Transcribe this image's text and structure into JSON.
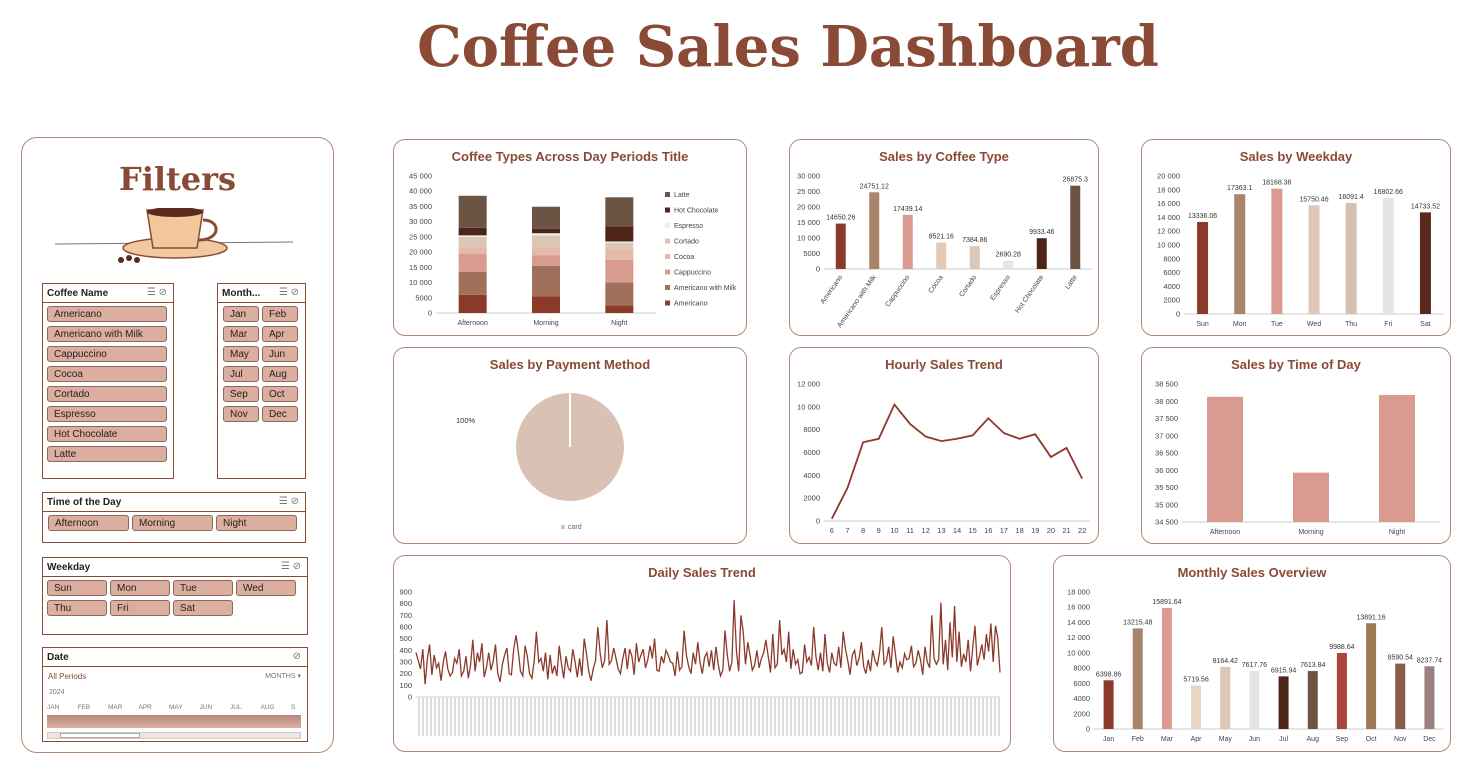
{
  "dashboard_title": "Coffee Sales Dashboard",
  "filters": {
    "title": "Filters",
    "coffee_slicer": {
      "title": "Coffee Name",
      "items": [
        "Americano",
        "Americano with Milk",
        "Cappuccino",
        "Cocoa",
        "Cortado",
        "Espresso",
        "Hot Chocolate",
        "Latte"
      ]
    },
    "month_slicer": {
      "title": "Month...",
      "items": [
        "Jan",
        "Feb",
        "Mar",
        "Apr",
        "May",
        "Jun",
        "Jul",
        "Aug",
        "Sep",
        "Oct",
        "Nov",
        "Dec"
      ]
    },
    "time_slicer": {
      "title": "Time of the Day",
      "items": [
        "Afternoon",
        "Morning",
        "Night"
      ]
    },
    "weekday_slicer": {
      "title": "Weekday",
      "items": [
        "Sun",
        "Mon",
        "Tue",
        "Wed",
        "Thu",
        "Fri",
        "Sat"
      ]
    },
    "date_slicer": {
      "title": "Date",
      "period": "All Periods",
      "granularity": "MONTHS",
      "year": "2024",
      "months": [
        "JAN",
        "FEB",
        "MAR",
        "APR",
        "MAY",
        "JUN",
        "JUL",
        "AUG",
        "S"
      ]
    }
  },
  "charts": {
    "coffee_types": {
      "title": "Coffee Types Across Day Periods Title"
    },
    "coffee_type_sales": {
      "title": "Sales by Coffee Type"
    },
    "weekday": {
      "title": "Sales by Weekday"
    },
    "payment": {
      "title": "Sales by Payment Method"
    },
    "hourly": {
      "title": "Hourly Sales Trend"
    },
    "time_of_day": {
      "title": "Sales by Time of Day"
    },
    "daily": {
      "title": "Daily Sales Trend"
    },
    "monthly": {
      "title": "Monthly Sales Overview"
    }
  },
  "chart_data": [
    {
      "id": "coffee_types",
      "type": "bar",
      "stacked": true,
      "categories": [
        "Afternoon",
        "Morning",
        "Night"
      ],
      "ylim": [
        0,
        45000
      ],
      "yticks": [
        0,
        5000,
        10000,
        15000,
        20000,
        25000,
        30000,
        35000,
        40000,
        45000
      ],
      "legend_position": "right",
      "series": [
        {
          "name": "Americano",
          "color": "#8b3a2a",
          "values": [
            6000,
            5500,
            2500
          ]
        },
        {
          "name": "Americano with Milk",
          "color": "#a0705a",
          "values": [
            7500,
            10000,
            7500
          ]
        },
        {
          "name": "Cappuccino",
          "color": "#d99a8f",
          "values": [
            6000,
            3500,
            7500
          ]
        },
        {
          "name": "Cocoa",
          "color": "#e5b9a9",
          "values": [
            2000,
            2500,
            3500
          ]
        },
        {
          "name": "Cortado",
          "color": "#dcc6b5",
          "values": [
            3500,
            4000,
            2000
          ]
        },
        {
          "name": "Espresso",
          "color": "#eeeeee",
          "values": [
            500,
            700,
            500
          ]
        },
        {
          "name": "Hot Chocolate",
          "color": "#4e2418",
          "values": [
            2500,
            1500,
            5000
          ]
        },
        {
          "name": "Latte",
          "color": "#6b5443",
          "values": [
            10500,
            7200,
            9500
          ]
        }
      ]
    },
    {
      "id": "coffee_type_sales",
      "type": "bar",
      "categories": [
        "Americano",
        "Americano with Milk",
        "Cappuccino",
        "Cocoa",
        "Cortado",
        "Espresso",
        "Hot Chocolate",
        "Latte"
      ],
      "values": [
        14650.26,
        24751.12,
        17439.14,
        8521.16,
        7384.86,
        2690.28,
        9933.46,
        26875.3
      ],
      "labels": [
        "14650.26",
        "24751.12",
        "17439.14",
        "8521.16",
        "7384.86",
        "2690.28",
        "9933.46",
        "26875.3"
      ],
      "colors": [
        "#8b3a2a",
        "#a9846a",
        "#d99a8f",
        "#e5c9b5",
        "#dcc6b5",
        "#e5e5e5",
        "#4e2418",
        "#6b5443"
      ],
      "ylim": [
        0,
        30000
      ],
      "yticks": [
        0,
        5000,
        10000,
        15000,
        20000,
        25000,
        30000
      ]
    },
    {
      "id": "weekday",
      "type": "bar",
      "categories": [
        "Sun",
        "Mon",
        "Tue",
        "Wed",
        "Thu",
        "Fri",
        "Sat"
      ],
      "values": [
        13336.06,
        17363.1,
        18168.38,
        15750.46,
        16091.4,
        16802.66,
        14733.52
      ],
      "labels": [
        "13336.06",
        "17363.1",
        "18168.38",
        "15750.46",
        "16091.4",
        "16802.66",
        "14733.52"
      ],
      "colors": [
        "#8b3a2a",
        "#a9846a",
        "#d99a8f",
        "#dfc6b5",
        "#d7c0b0",
        "#e5e5e5",
        "#5a2a1e"
      ],
      "ylim": [
        0,
        20000
      ],
      "yticks": [
        0,
        2000,
        4000,
        6000,
        8000,
        10000,
        12000,
        14000,
        16000,
        18000,
        20000
      ]
    },
    {
      "id": "payment",
      "type": "pie",
      "categories": [
        "card"
      ],
      "values": [
        100
      ],
      "labels": [
        "100%"
      ],
      "colors": [
        "#d9c1b3"
      ],
      "legend_position": "bottom"
    },
    {
      "id": "hourly",
      "type": "line",
      "x": [
        6,
        7,
        8,
        9,
        10,
        11,
        12,
        13,
        14,
        15,
        16,
        17,
        18,
        19,
        20,
        21,
        22
      ],
      "values": [
        200,
        2900,
        6900,
        7200,
        10200,
        8500,
        7400,
        7000,
        7200,
        7500,
        9000,
        7700,
        7200,
        7600,
        5600,
        6400,
        3700
      ],
      "ylim": [
        0,
        12000
      ],
      "yticks": [
        0,
        2000,
        4000,
        6000,
        8000,
        10000,
        12000
      ],
      "color": "#8b3a2a"
    },
    {
      "id": "time_of_day",
      "type": "bar",
      "categories": [
        "Afternoon",
        "Morning",
        "Night"
      ],
      "values": [
        38130,
        35930,
        38180
      ],
      "ylim": [
        34500,
        38500
      ],
      "yticks": [
        34500,
        35000,
        35500,
        36000,
        36500,
        37000,
        37500,
        38000,
        38500
      ],
      "color": "#d99a8f"
    },
    {
      "id": "daily",
      "type": "line",
      "values": [
        380,
        310,
        240,
        410,
        110,
        330,
        450,
        190,
        360,
        250,
        290,
        140,
        300,
        390,
        240,
        180,
        210,
        330,
        290,
        410,
        180,
        220,
        350,
        160,
        270,
        490,
        220,
        380,
        300,
        460,
        170,
        250,
        380,
        230,
        310,
        450,
        200,
        130,
        280,
        360,
        420,
        200,
        190,
        410,
        530,
        390,
        220,
        180,
        440,
        350,
        200,
        160,
        310,
        560,
        300,
        330,
        220,
        380,
        150,
        360,
        200,
        270,
        180,
        440,
        290,
        160,
        350,
        250,
        220,
        410,
        300,
        170,
        330,
        180,
        500,
        380,
        220,
        140,
        240,
        310,
        600,
        380,
        250,
        310,
        660,
        280,
        310,
        420,
        330,
        240,
        200,
        330,
        420,
        240,
        410,
        350,
        190,
        460,
        300,
        360,
        410,
        250,
        320,
        440,
        330,
        500,
        230,
        220,
        350,
        290,
        400,
        360,
        300,
        290,
        180,
        390,
        230,
        260,
        570,
        360,
        260,
        200,
        380,
        280,
        470,
        300,
        200,
        340,
        380,
        260,
        400,
        230,
        430,
        280,
        180,
        230,
        570,
        360,
        220,
        300,
        830,
        400,
        220,
        700,
        560,
        280,
        470,
        360,
        230,
        270,
        400,
        250,
        330,
        380,
        490,
        350,
        210,
        540,
        250,
        280,
        660,
        360,
        410,
        300,
        560,
        240,
        410,
        280,
        320,
        200,
        210,
        450,
        300,
        340,
        270,
        600,
        350,
        230,
        380,
        220,
        540,
        290,
        210,
        380,
        290,
        270,
        430,
        250,
        560,
        410,
        310,
        190,
        360,
        400,
        270,
        330,
        470,
        260,
        200,
        320,
        220,
        400,
        310,
        270,
        390,
        600,
        280,
        310,
        430,
        250,
        520,
        360,
        210,
        300,
        250,
        370,
        320,
        330,
        440,
        260,
        290,
        400,
        320,
        190,
        430,
        300,
        250,
        700,
        330,
        280,
        320,
        810,
        280,
        490,
        230,
        640,
        340,
        780,
        300,
        560,
        260,
        370,
        300,
        490,
        220,
        420,
        610,
        270,
        350,
        450,
        320,
        540,
        390,
        630,
        300,
        610,
        510,
        210
      ],
      "ylim": [
        0,
        900
      ],
      "yticks": [
        0,
        100,
        200,
        300,
        400,
        500,
        600,
        700,
        800,
        900
      ],
      "color": "#8b3a2a"
    },
    {
      "id": "monthly",
      "type": "bar",
      "categories": [
        "Jan",
        "Feb",
        "Mar",
        "Apr",
        "May",
        "Jun",
        "Jul",
        "Aug",
        "Sep",
        "Oct",
        "Nov",
        "Dec"
      ],
      "values": [
        6398.86,
        13215.48,
        15891.64,
        5719.56,
        8164.42,
        7617.76,
        6915.94,
        7613.84,
        9988.64,
        13891.16,
        8590.54,
        8237.74
      ],
      "labels": [
        "6398.86",
        "13215.48",
        "15891.64",
        "5719.56",
        "8164.42",
        "7617.76",
        "6915.94",
        "7613.84",
        "9988.64",
        "13891.16",
        "8590.54",
        "8237.74"
      ],
      "colors": [
        "#8b3a2a",
        "#a9846a",
        "#d99a8f",
        "#e9d5c3",
        "#dcc6b5",
        "#e5e5e5",
        "#4e2418",
        "#6b5443",
        "#a9453a",
        "#a07a55",
        "#8a5a4a",
        "#9a8180"
      ],
      "ylim": [
        0,
        18000
      ],
      "yticks": [
        0,
        2000,
        4000,
        6000,
        8000,
        10000,
        12000,
        14000,
        16000,
        18000
      ]
    }
  ]
}
